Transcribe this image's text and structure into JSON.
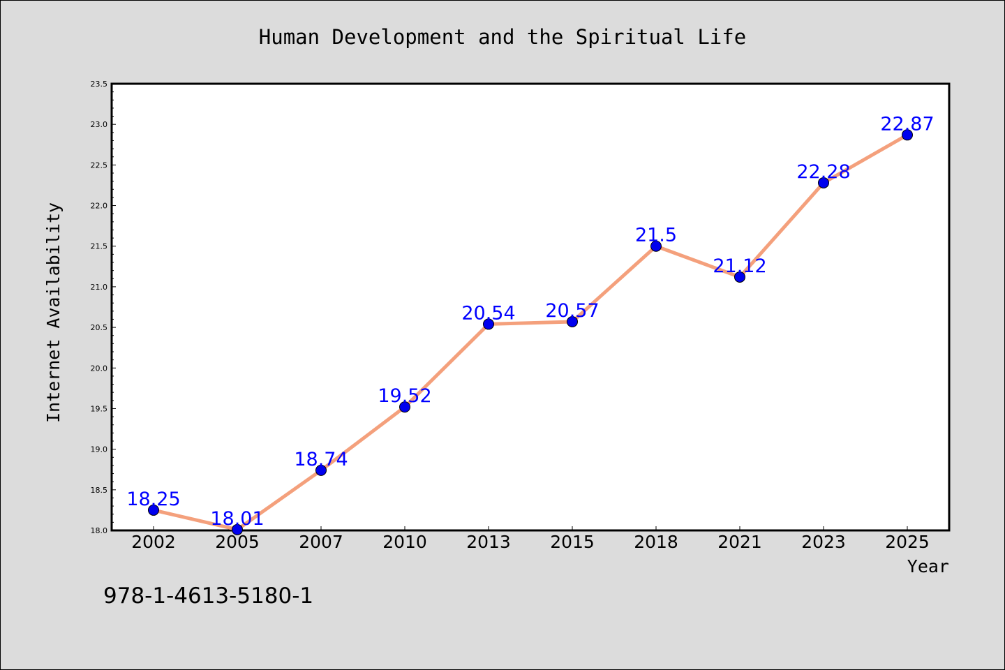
{
  "chart_data": {
    "type": "line",
    "title": "Human Development and the Spiritual Life",
    "xlabel": "Year",
    "ylabel": "Internet Availability",
    "categories": [
      "2002",
      "2005",
      "2007",
      "2010",
      "2013",
      "2015",
      "2018",
      "2021",
      "2023",
      "2025"
    ],
    "series": [
      {
        "values": [
          18.25,
          18.01,
          18.74,
          19.52,
          20.54,
          20.57,
          21.5,
          21.12,
          22.28,
          22.87
        ],
        "labels": [
          "18.25",
          "18.01",
          "18.74",
          "19.52",
          "20.54",
          "20.57",
          "21.5",
          "21.12",
          "22.28",
          "22.87"
        ],
        "line_color": "#f4a07c",
        "marker_color": "#0000ee",
        "label_color": "#0000ff"
      }
    ],
    "ylim": [
      18.0,
      23.5
    ],
    "yticks": [
      "18.0",
      "18.5",
      "19.0",
      "19.5",
      "20.0",
      "20.5",
      "21.0",
      "21.5",
      "22.0",
      "22.5",
      "23.0",
      "23.5"
    ],
    "grid": false,
    "background_color": "#dcdcdc",
    "plot_background": "#ffffff"
  },
  "annotation": "978-1-4613-5180-1"
}
